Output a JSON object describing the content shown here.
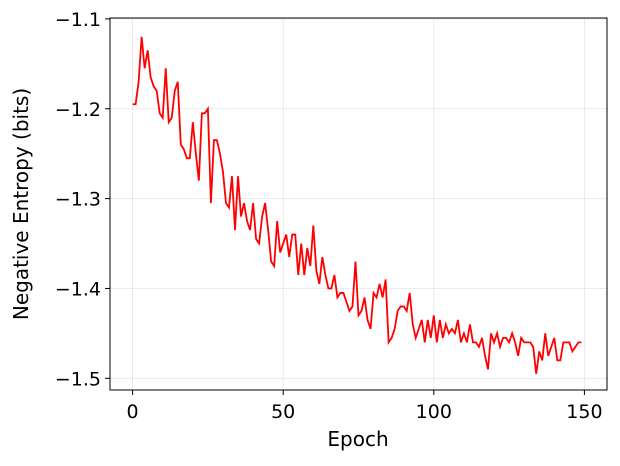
{
  "chart_data": {
    "type": "line",
    "x_label": "Epoch",
    "y_label": "Negative Entropy (bits)",
    "x": [
      0,
      1,
      2,
      3,
      4,
      5,
      6,
      7,
      8,
      9,
      10,
      11,
      12,
      13,
      14,
      15,
      16,
      17,
      18,
      19,
      20,
      21,
      22,
      23,
      24,
      25,
      26,
      27,
      28,
      29,
      30,
      31,
      32,
      33,
      34,
      35,
      36,
      37,
      38,
      39,
      40,
      41,
      42,
      43,
      44,
      45,
      46,
      47,
      48,
      49,
      50,
      51,
      52,
      53,
      54,
      55,
      56,
      57,
      58,
      59,
      60,
      61,
      62,
      63,
      64,
      65,
      66,
      67,
      68,
      69,
      70,
      71,
      72,
      73,
      74,
      75,
      76,
      77,
      78,
      79,
      80,
      81,
      82,
      83,
      84,
      85,
      86,
      87,
      88,
      89,
      90,
      91,
      92,
      93,
      94,
      95,
      96,
      97,
      98,
      99,
      100,
      101,
      102,
      103,
      104,
      105,
      106,
      107,
      108,
      109,
      110,
      111,
      112,
      113,
      114,
      115,
      116,
      117,
      118,
      119,
      120,
      121,
      122,
      123,
      124,
      125,
      126,
      127,
      128,
      129,
      130,
      131,
      132,
      133,
      134,
      135,
      136,
      137,
      138,
      139,
      140,
      141,
      142,
      143,
      144,
      145,
      146,
      147,
      148,
      149
    ],
    "values": [
      -1.195,
      -1.195,
      -1.17,
      -1.12,
      -1.155,
      -1.135,
      -1.165,
      -1.175,
      -1.18,
      -1.205,
      -1.21,
      -1.155,
      -1.215,
      -1.21,
      -1.18,
      -1.17,
      -1.24,
      -1.245,
      -1.255,
      -1.255,
      -1.215,
      -1.25,
      -1.28,
      -1.205,
      -1.205,
      -1.2,
      -1.305,
      -1.235,
      -1.235,
      -1.25,
      -1.27,
      -1.305,
      -1.31,
      -1.275,
      -1.335,
      -1.275,
      -1.32,
      -1.305,
      -1.325,
      -1.335,
      -1.305,
      -1.345,
      -1.35,
      -1.32,
      -1.305,
      -1.335,
      -1.37,
      -1.375,
      -1.325,
      -1.36,
      -1.35,
      -1.34,
      -1.365,
      -1.34,
      -1.34,
      -1.385,
      -1.35,
      -1.385,
      -1.355,
      -1.375,
      -1.33,
      -1.38,
      -1.395,
      -1.365,
      -1.385,
      -1.4,
      -1.4,
      -1.385,
      -1.41,
      -1.405,
      -1.405,
      -1.415,
      -1.425,
      -1.42,
      -1.37,
      -1.43,
      -1.425,
      -1.41,
      -1.435,
      -1.445,
      -1.405,
      -1.41,
      -1.395,
      -1.41,
      -1.39,
      -1.46,
      -1.455,
      -1.445,
      -1.425,
      -1.42,
      -1.42,
      -1.425,
      -1.405,
      -1.44,
      -1.455,
      -1.445,
      -1.435,
      -1.46,
      -1.435,
      -1.455,
      -1.43,
      -1.46,
      -1.435,
      -1.455,
      -1.44,
      -1.45,
      -1.445,
      -1.45,
      -1.435,
      -1.46,
      -1.45,
      -1.46,
      -1.44,
      -1.46,
      -1.46,
      -1.465,
      -1.455,
      -1.475,
      -1.49,
      -1.45,
      -1.46,
      -1.45,
      -1.465,
      -1.455,
      -1.455,
      -1.46,
      -1.45,
      -1.46,
      -1.475,
      -1.455,
      -1.46,
      -1.46,
      -1.46,
      -1.465,
      -1.495,
      -1.47,
      -1.48,
      -1.45,
      -1.475,
      -1.465,
      -1.455,
      -1.48,
      -1.48,
      -1.46,
      -1.46,
      -1.46,
      -1.47,
      -1.465,
      -1.46,
      -1.46
    ],
    "color": "#ff0000",
    "xlim": [
      -7.5,
      157.5
    ],
    "xticks": [
      0,
      50,
      100,
      150
    ],
    "ylim": [
      -1.513,
      -1.099
    ],
    "yticks": [
      {
        "value": -1.5,
        "label": "−1.5"
      },
      {
        "value": -1.4,
        "label": "−1.4"
      },
      {
        "value": -1.3,
        "label": "−1.3"
      },
      {
        "value": -1.2,
        "label": "−1.2"
      },
      {
        "value": -1.1,
        "label": "−1.1"
      }
    ],
    "grid": true
  }
}
